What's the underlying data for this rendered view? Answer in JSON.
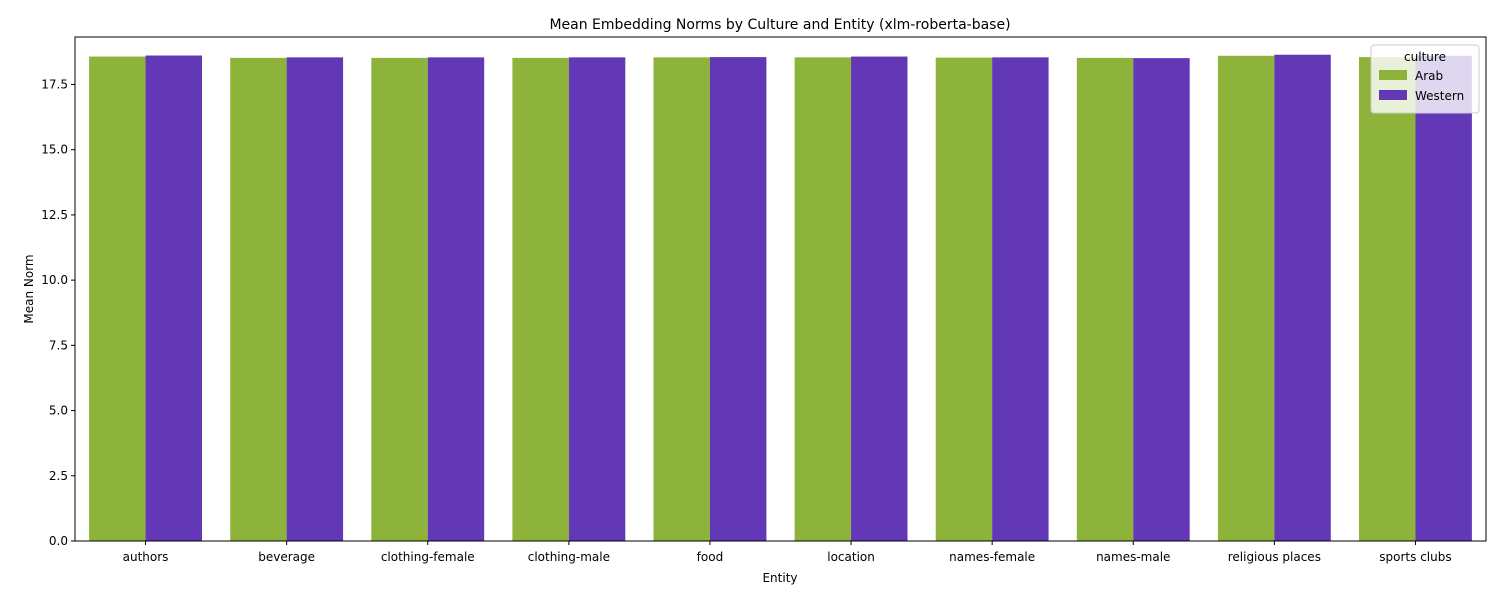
{
  "chart_data": {
    "type": "bar",
    "title": "Mean Embedding Norms by Culture and Entity (xlm-roberta-base)",
    "xlabel": "Entity",
    "ylabel": "Mean Norm",
    "categories": [
      "authors",
      "beverage",
      "clothing-female",
      "clothing-male",
      "food",
      "location",
      "names-female",
      "names-male",
      "religious places",
      "sports clubs"
    ],
    "series": [
      {
        "name": "Arab",
        "color": "#8db33a",
        "values": [
          18.57,
          18.52,
          18.52,
          18.52,
          18.54,
          18.54,
          18.53,
          18.52,
          18.6,
          18.55
        ]
      },
      {
        "name": "Western",
        "color": "#6238b6",
        "values": [
          18.61,
          18.54,
          18.54,
          18.54,
          18.55,
          18.57,
          18.54,
          18.51,
          18.64,
          18.6
        ]
      }
    ],
    "ylim": [
      0,
      19.32
    ],
    "yticks": [
      "0.0",
      "2.5",
      "5.0",
      "7.5",
      "10.0",
      "12.5",
      "15.0",
      "17.5"
    ],
    "legend": {
      "title": "culture",
      "placement": "top-right"
    },
    "grid": false
  }
}
